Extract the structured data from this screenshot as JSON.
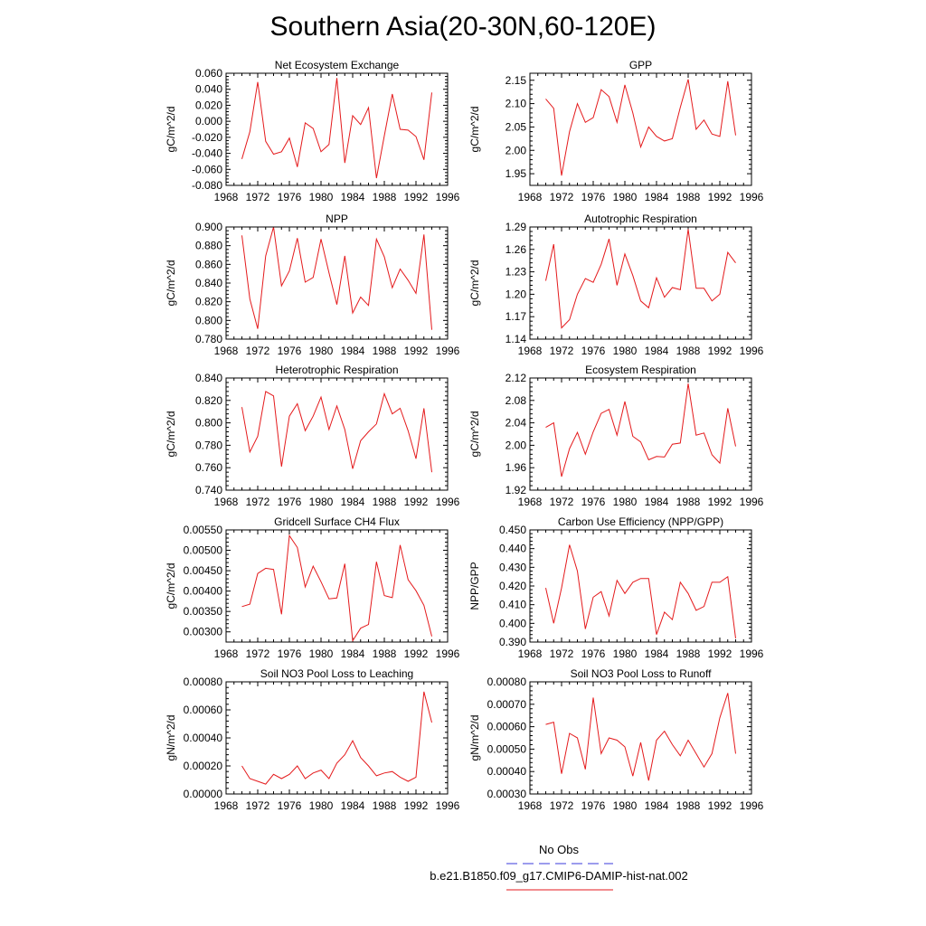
{
  "title": "Southern Asia(20-30N,60-120E)",
  "legend": {
    "items": [
      {
        "label": "No Obs",
        "color": "#3a3adb",
        "dash": true
      },
      {
        "label": "b.e21.B1850.f09_g17.CMIP6-DAMIP-hist-nat.002",
        "color": "#e41a1c",
        "dash": false
      }
    ]
  },
  "line_color": "#e41a1c",
  "chart_data": [
    {
      "type": "line",
      "title": "Net Ecosystem Exchange",
      "ylabel": "gC/m^2/d",
      "xlim": [
        1968,
        1996
      ],
      "ylim": [
        -0.08,
        0.06
      ],
      "yticks": [
        -0.08,
        -0.06,
        -0.04,
        -0.02,
        0.0,
        0.02,
        0.04,
        0.06
      ],
      "ytick_labels": [
        "-0.080",
        "-0.060",
        "-0.040",
        "-0.020",
        "0.000",
        "0.020",
        "0.040",
        "0.060"
      ],
      "xticks": [
        1968,
        1972,
        1976,
        1980,
        1984,
        1988,
        1992,
        1996
      ],
      "x": [
        1970,
        1971,
        1972,
        1973,
        1974,
        1975,
        1976,
        1977,
        1978,
        1979,
        1980,
        1981,
        1982,
        1983,
        1984,
        1985,
        1986,
        1987,
        1988,
        1989,
        1990,
        1991,
        1992,
        1993,
        1994
      ],
      "series": [
        {
          "values": [
            -0.047,
            -0.013,
            0.049,
            -0.025,
            -0.041,
            -0.038,
            -0.021,
            -0.057,
            -0.002,
            -0.009,
            -0.038,
            -0.029,
            0.054,
            -0.052,
            0.007,
            -0.004,
            0.017,
            -0.071,
            -0.018,
            0.034,
            -0.01,
            -0.011,
            -0.019,
            -0.048,
            0.036
          ]
        }
      ]
    },
    {
      "type": "line",
      "title": "GPP",
      "ylabel": "gC/m^2/d",
      "xlim": [
        1968,
        1996
      ],
      "ylim": [
        1.925,
        2.165
      ],
      "yticks": [
        1.95,
        2.0,
        2.05,
        2.1,
        2.15
      ],
      "ytick_labels": [
        "1.95",
        "2.00",
        "2.05",
        "2.10",
        "2.15"
      ],
      "xticks": [
        1968,
        1972,
        1976,
        1980,
        1984,
        1988,
        1992,
        1996
      ],
      "x": [
        1970,
        1971,
        1972,
        1973,
        1974,
        1975,
        1976,
        1977,
        1978,
        1979,
        1980,
        1981,
        1982,
        1983,
        1984,
        1985,
        1986,
        1987,
        1988,
        1989,
        1990,
        1991,
        1992,
        1993,
        1994
      ],
      "series": [
        {
          "values": [
            2.11,
            2.09,
            1.946,
            2.04,
            2.1,
            2.06,
            2.07,
            2.13,
            2.115,
            2.06,
            2.14,
            2.08,
            2.007,
            2.05,
            2.03,
            2.02,
            2.025,
            2.092,
            2.152,
            2.045,
            2.065,
            2.035,
            2.03,
            2.148,
            2.032
          ]
        }
      ]
    },
    {
      "type": "line",
      "title": "NPP",
      "ylabel": "gC/m^2/d",
      "xlim": [
        1968,
        1996
      ],
      "ylim": [
        0.78,
        0.9
      ],
      "yticks": [
        0.78,
        0.8,
        0.82,
        0.84,
        0.86,
        0.88,
        0.9
      ],
      "ytick_labels": [
        "0.780",
        "0.800",
        "0.820",
        "0.840",
        "0.860",
        "0.880",
        "0.900"
      ],
      "xticks": [
        1968,
        1972,
        1976,
        1980,
        1984,
        1988,
        1992,
        1996
      ],
      "x": [
        1970,
        1971,
        1972,
        1973,
        1974,
        1975,
        1976,
        1977,
        1978,
        1979,
        1980,
        1981,
        1982,
        1983,
        1984,
        1985,
        1986,
        1987,
        1988,
        1989,
        1990,
        1991,
        1992,
        1993,
        1994
      ],
      "series": [
        {
          "values": [
            0.891,
            0.823,
            0.791,
            0.869,
            0.9,
            0.837,
            0.853,
            0.888,
            0.841,
            0.846,
            0.887,
            0.851,
            0.817,
            0.869,
            0.808,
            0.825,
            0.816,
            0.887,
            0.868,
            0.835,
            0.855,
            0.843,
            0.829,
            0.892,
            0.79
          ]
        }
      ]
    },
    {
      "type": "line",
      "title": "Autotrophic Respiration",
      "ylabel": "gC/m^2/d",
      "xlim": [
        1968,
        1996
      ],
      "ylim": [
        1.14,
        1.29
      ],
      "yticks": [
        1.14,
        1.17,
        1.2,
        1.23,
        1.26,
        1.29
      ],
      "ytick_labels": [
        "1.14",
        "1.17",
        "1.20",
        "1.23",
        "1.26",
        "1.29"
      ],
      "xticks": [
        1968,
        1972,
        1976,
        1980,
        1984,
        1988,
        1992,
        1996
      ],
      "x": [
        1970,
        1971,
        1972,
        1973,
        1974,
        1975,
        1976,
        1977,
        1978,
        1979,
        1980,
        1981,
        1982,
        1983,
        1984,
        1985,
        1986,
        1987,
        1988,
        1989,
        1990,
        1991,
        1992,
        1993,
        1994
      ],
      "series": [
        {
          "values": [
            1.218,
            1.267,
            1.155,
            1.166,
            1.2,
            1.221,
            1.216,
            1.24,
            1.274,
            1.212,
            1.254,
            1.225,
            1.191,
            1.182,
            1.222,
            1.196,
            1.209,
            1.206,
            1.287,
            1.208,
            1.208,
            1.191,
            1.2,
            1.256,
            1.242
          ]
        }
      ]
    },
    {
      "type": "line",
      "title": "Heterotrophic Respiration",
      "ylabel": "gC/m^2/d",
      "xlim": [
        1968,
        1996
      ],
      "ylim": [
        0.74,
        0.84
      ],
      "yticks": [
        0.74,
        0.76,
        0.78,
        0.8,
        0.82,
        0.84
      ],
      "ytick_labels": [
        "0.740",
        "0.760",
        "0.780",
        "0.800",
        "0.820",
        "0.840"
      ],
      "xticks": [
        1968,
        1972,
        1976,
        1980,
        1984,
        1988,
        1992,
        1996
      ],
      "x": [
        1970,
        1971,
        1972,
        1973,
        1974,
        1975,
        1976,
        1977,
        1978,
        1979,
        1980,
        1981,
        1982,
        1983,
        1984,
        1985,
        1986,
        1987,
        1988,
        1989,
        1990,
        1991,
        1992,
        1993,
        1994
      ],
      "series": [
        {
          "values": [
            0.814,
            0.774,
            0.788,
            0.828,
            0.824,
            0.761,
            0.806,
            0.817,
            0.793,
            0.806,
            0.823,
            0.794,
            0.815,
            0.794,
            0.759,
            0.784,
            0.792,
            0.799,
            0.826,
            0.808,
            0.813,
            0.793,
            0.768,
            0.813,
            0.756
          ]
        }
      ]
    },
    {
      "type": "line",
      "title": "Ecosystem Respiration",
      "ylabel": "gC/m^2/d",
      "xlim": [
        1968,
        1996
      ],
      "ylim": [
        1.92,
        2.12
      ],
      "yticks": [
        1.92,
        1.96,
        2.0,
        2.04,
        2.08,
        2.12
      ],
      "ytick_labels": [
        "1.92",
        "1.96",
        "2.00",
        "2.04",
        "2.08",
        "2.12"
      ],
      "xticks": [
        1968,
        1972,
        1976,
        1980,
        1984,
        1988,
        1992,
        1996
      ],
      "x": [
        1970,
        1971,
        1972,
        1973,
        1974,
        1975,
        1976,
        1977,
        1978,
        1979,
        1980,
        1981,
        1982,
        1983,
        1984,
        1985,
        1986,
        1987,
        1988,
        1989,
        1990,
        1991,
        1992,
        1993,
        1994
      ],
      "series": [
        {
          "values": [
            2.032,
            2.04,
            1.944,
            1.994,
            2.023,
            1.984,
            2.024,
            2.057,
            2.064,
            2.018,
            2.078,
            2.016,
            2.006,
            1.974,
            1.98,
            1.979,
            2.002,
            2.004,
            2.11,
            2.018,
            2.022,
            1.983,
            1.968,
            2.066,
            1.998
          ]
        }
      ]
    },
    {
      "type": "line",
      "title": "Gridcell Surface CH4 Flux",
      "ylabel": "gC/m^2/d",
      "xlim": [
        1968,
        1996
      ],
      "ylim": [
        0.00275,
        0.0055
      ],
      "yticks": [
        0.003,
        0.0035,
        0.004,
        0.0045,
        0.005,
        0.0055
      ],
      "ytick_labels": [
        "0.00300",
        "0.00350",
        "0.00400",
        "0.00450",
        "0.00500",
        "0.00550"
      ],
      "xticks": [
        1968,
        1972,
        1976,
        1980,
        1984,
        1988,
        1992,
        1996
      ],
      "x": [
        1970,
        1971,
        1972,
        1973,
        1974,
        1975,
        1976,
        1977,
        1978,
        1979,
        1980,
        1981,
        1982,
        1983,
        1984,
        1985,
        1986,
        1987,
        1988,
        1989,
        1990,
        1991,
        1992,
        1993,
        1994
      ],
      "series": [
        {
          "values": [
            0.00362,
            0.00368,
            0.00443,
            0.00456,
            0.00453,
            0.00343,
            0.00536,
            0.00507,
            0.0041,
            0.00461,
            0.00423,
            0.00381,
            0.00383,
            0.00467,
            0.00278,
            0.00309,
            0.00318,
            0.00472,
            0.00389,
            0.00384,
            0.00513,
            0.00428,
            0.00401,
            0.00365,
            0.00289
          ]
        }
      ]
    },
    {
      "type": "line",
      "title": "Carbon Use Efficiency (NPP/GPP)",
      "ylabel": "NPP/GPP",
      "xlim": [
        1968,
        1996
      ],
      "ylim": [
        0.39,
        0.45
      ],
      "yticks": [
        0.39,
        0.4,
        0.41,
        0.42,
        0.43,
        0.44,
        0.45
      ],
      "ytick_labels": [
        "0.390",
        "0.400",
        "0.410",
        "0.420",
        "0.430",
        "0.440",
        "0.450"
      ],
      "xticks": [
        1968,
        1972,
        1976,
        1980,
        1984,
        1988,
        1992,
        1996
      ],
      "x": [
        1970,
        1971,
        1972,
        1973,
        1974,
        1975,
        1976,
        1977,
        1978,
        1979,
        1980,
        1981,
        1982,
        1983,
        1984,
        1985,
        1986,
        1987,
        1988,
        1989,
        1990,
        1991,
        1992,
        1993,
        1994
      ],
      "series": [
        {
          "values": [
            0.419,
            0.4,
            0.419,
            0.442,
            0.428,
            0.397,
            0.414,
            0.417,
            0.404,
            0.423,
            0.416,
            0.422,
            0.424,
            0.424,
            0.394,
            0.406,
            0.402,
            0.422,
            0.416,
            0.407,
            0.409,
            0.422,
            0.422,
            0.425,
            0.392
          ]
        }
      ]
    },
    {
      "type": "line",
      "title": "Soil NO3 Pool Loss to Leaching",
      "ylabel": "gN/m^2/d",
      "xlim": [
        1968,
        1996
      ],
      "ylim": [
        0.0,
        0.0008
      ],
      "yticks": [
        0.0,
        0.0002,
        0.0004,
        0.0006,
        0.0008
      ],
      "ytick_labels": [
        "0.00000",
        "0.00020",
        "0.00040",
        "0.00060",
        "0.00080"
      ],
      "xticks": [
        1968,
        1972,
        1976,
        1980,
        1984,
        1988,
        1992,
        1996
      ],
      "x": [
        1970,
        1971,
        1972,
        1973,
        1974,
        1975,
        1976,
        1977,
        1978,
        1979,
        1980,
        1981,
        1982,
        1983,
        1984,
        1985,
        1986,
        1987,
        1988,
        1989,
        1990,
        1991,
        1992,
        1993,
        1994
      ],
      "series": [
        {
          "values": [
            0.0002,
            0.00011,
            9e-05,
            7e-05,
            0.00014,
            0.00011,
            0.00014,
            0.0002,
            0.00011,
            0.00015,
            0.00017,
            0.00011,
            0.00022,
            0.00028,
            0.00038,
            0.00026,
            0.0002,
            0.00013,
            0.00015,
            0.00016,
            0.00012,
            9e-05,
            0.00012,
            0.00073,
            0.00051
          ]
        }
      ]
    },
    {
      "type": "line",
      "title": "Soil NO3 Pool Loss to Runoff",
      "ylabel": "gN/m^2/d",
      "xlim": [
        1968,
        1996
      ],
      "ylim": [
        0.0003,
        0.0008
      ],
      "yticks": [
        0.0003,
        0.0004,
        0.0005,
        0.0006,
        0.0007,
        0.0008
      ],
      "ytick_labels": [
        "0.00030",
        "0.00040",
        "0.00050",
        "0.00060",
        "0.00070",
        "0.00080"
      ],
      "xticks": [
        1968,
        1972,
        1976,
        1980,
        1984,
        1988,
        1992,
        1996
      ],
      "x": [
        1970,
        1971,
        1972,
        1973,
        1974,
        1975,
        1976,
        1977,
        1978,
        1979,
        1980,
        1981,
        1982,
        1983,
        1984,
        1985,
        1986,
        1987,
        1988,
        1989,
        1990,
        1991,
        1992,
        1993,
        1994
      ],
      "series": [
        {
          "values": [
            0.00061,
            0.00062,
            0.00039,
            0.00057,
            0.00055,
            0.00041,
            0.00073,
            0.00048,
            0.00055,
            0.00054,
            0.00051,
            0.00038,
            0.00053,
            0.00036,
            0.00054,
            0.00058,
            0.00052,
            0.00047,
            0.00054,
            0.00048,
            0.00042,
            0.00048,
            0.00064,
            0.00075,
            0.00048
          ]
        }
      ]
    }
  ]
}
